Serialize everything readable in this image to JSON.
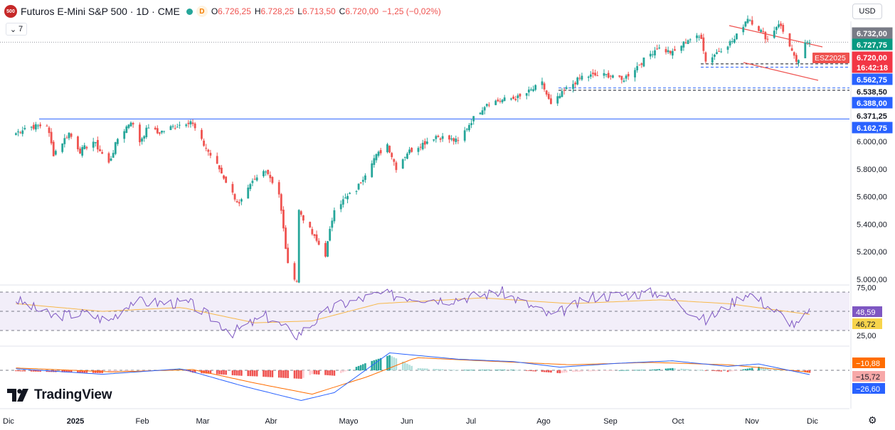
{
  "header": {
    "logo_text": "500",
    "title": "Futuros E-Mini S&P 500 · 1D · CME",
    "d_badge": "D",
    "open_label": "O",
    "open": "6.726,25",
    "high_label": "H",
    "high": "6.728,25",
    "low_label": "L",
    "low": "6.713,50",
    "close_label": "C",
    "close": "6.720,00",
    "change": "−1,25 (−0,02%)"
  },
  "indicators_toggle": "7",
  "currency": "USD",
  "brand": "TradingView",
  "colors": {
    "up": "#26a69a",
    "down": "#ef5350",
    "blue_line": "#2962ff",
    "rsi_line": "#7e57c2",
    "rsi_ma": "#f7b84b",
    "rsi_band": "#ede7f6",
    "macd_line": "#2962ff",
    "signal_line": "#ff6d00"
  },
  "price_axis": {
    "ticks": [
      "6.000,00",
      "5.800,00",
      "5.600,00",
      "5.400,00",
      "5.200,00",
      "5.000,00"
    ],
    "labels": [
      {
        "text": "6.732,00",
        "value": 6732,
        "bg": "#787b86",
        "fg": "#ffffff"
      },
      {
        "text": "6.727,75",
        "value": 6727.75,
        "bg": "#089981",
        "fg": "#ffffff"
      },
      {
        "text": "6.720,00",
        "value": 6720,
        "bg": "#f23645",
        "fg": "#ffffff"
      },
      {
        "text": "16:42:18",
        "value": 6700,
        "bg": "#f23645",
        "fg": "#ffffff"
      },
      {
        "text": "6.562,75",
        "value": 6562.75,
        "bg": "#2962ff",
        "fg": "#ffffff"
      },
      {
        "text": "6.538,50",
        "value": 6538.5,
        "bg": "#ffffff",
        "fg": "#131722"
      },
      {
        "text": "6.388,00",
        "value": 6388,
        "bg": "#2962ff",
        "fg": "#ffffff"
      },
      {
        "text": "6.371,25",
        "value": 6371.25,
        "bg": "#ffffff",
        "fg": "#131722"
      },
      {
        "text": "6.162,75",
        "value": 6162.75,
        "bg": "#2962ff",
        "fg": "#ffffff"
      }
    ],
    "symbol_tag": "ESZ2025"
  },
  "rsi_axis": {
    "ticks": [
      "75,00",
      "25,00"
    ],
    "labels": [
      {
        "text": "48,59",
        "value": 48.59,
        "bg": "#7e57c2",
        "fg": "#ffffff"
      },
      {
        "text": "46,72",
        "value": 46.72,
        "bg": "#f7d44b",
        "fg": "#131722"
      }
    ]
  },
  "macd_axis": {
    "labels": [
      {
        "text": "−10,88",
        "value": -10.88,
        "bg": "#ff6d00",
        "fg": "#ffffff"
      },
      {
        "text": "−15,72",
        "value": -15.72,
        "bg": "#f7a8a8",
        "fg": "#131722"
      },
      {
        "text": "−26,60",
        "value": -26.6,
        "bg": "#2962ff",
        "fg": "#ffffff"
      }
    ]
  },
  "x_axis": {
    "labels": [
      "Dic",
      "2025",
      "Feb",
      "Mar",
      "Abr",
      "Mayo",
      "Jun",
      "Jul",
      "Ago",
      "Sep",
      "Oct",
      "Nov",
      "Dic"
    ]
  },
  "chart_data": {
    "type": "candlestick",
    "symbol": "ESZ2025",
    "interval": "1D",
    "x_range": [
      "2024-11-28",
      "2025-11-26"
    ],
    "ylim": [
      4800,
      6800
    ],
    "horizontal_levels": [
      6562.75,
      6538.5,
      6388,
      6371.25,
      6162.75
    ],
    "price_path": [
      [
        "2024-12-02",
        6060
      ],
      [
        "2024-12-06",
        6100
      ],
      [
        "2024-12-16",
        6120
      ],
      [
        "2024-12-19",
        5910
      ],
      [
        "2024-12-26",
        6060
      ],
      [
        "2024-12-31",
        5930
      ],
      [
        "2025-01-06",
        6000
      ],
      [
        "2025-01-13",
        5840
      ],
      [
        "2025-01-17",
        6020
      ],
      [
        "2025-01-23",
        6150
      ],
      [
        "2025-01-27",
        6000
      ],
      [
        "2025-01-31",
        6110
      ],
      [
        "2025-02-04",
        6060
      ],
      [
        "2025-02-10",
        6100
      ],
      [
        "2025-02-19",
        6150
      ],
      [
        "2025-02-24",
        6000
      ],
      [
        "2025-03-04",
        5800
      ],
      [
        "2025-03-10",
        5620
      ],
      [
        "2025-03-13",
        5540
      ],
      [
        "2025-03-19",
        5700
      ],
      [
        "2025-03-25",
        5800
      ],
      [
        "2025-03-31",
        5620
      ],
      [
        "2025-04-04",
        5100
      ],
      [
        "2025-04-08",
        4990
      ],
      [
        "2025-04-09",
        5500
      ],
      [
        "2025-04-16",
        5300
      ],
      [
        "2025-04-21",
        5180
      ],
      [
        "2025-04-25",
        5520
      ],
      [
        "2025-05-05",
        5650
      ],
      [
        "2025-05-12",
        5860
      ],
      [
        "2025-05-19",
        5980
      ],
      [
        "2025-05-23",
        5810
      ],
      [
        "2025-05-28",
        5920
      ],
      [
        "2025-06-10",
        6040
      ],
      [
        "2025-06-20",
        6000
      ],
      [
        "2025-06-26",
        6150
      ],
      [
        "2025-07-03",
        6280
      ],
      [
        "2025-07-10",
        6300
      ],
      [
        "2025-07-18",
        6320
      ],
      [
        "2025-07-28",
        6420
      ],
      [
        "2025-08-01",
        6260
      ],
      [
        "2025-08-08",
        6380
      ],
      [
        "2025-08-15",
        6470
      ],
      [
        "2025-08-22",
        6480
      ],
      [
        "2025-08-29",
        6480
      ],
      [
        "2025-09-02",
        6440
      ],
      [
        "2025-09-10",
        6560
      ],
      [
        "2025-09-18",
        6680
      ],
      [
        "2025-09-25",
        6640
      ],
      [
        "2025-10-02",
        6740
      ],
      [
        "2025-10-08",
        6760
      ],
      [
        "2025-10-10",
        6580
      ],
      [
        "2025-10-16",
        6660
      ],
      [
        "2025-10-23",
        6740
      ],
      [
        "2025-10-29",
        6900
      ],
      [
        "2025-11-04",
        6800
      ],
      [
        "2025-11-07",
        6740
      ],
      [
        "2025-11-12",
        6860
      ],
      [
        "2025-11-17",
        6700
      ],
      [
        "2025-11-20",
        6560
      ],
      [
        "2025-11-24",
        6700
      ],
      [
        "2025-11-26",
        6720
      ]
    ],
    "rsi": {
      "ylim": [
        0,
        100
      ],
      "bands": [
        70,
        50,
        30
      ],
      "path": [
        [
          "2024-12-02",
          62
        ],
        [
          "2024-12-18",
          45
        ],
        [
          "2025-01-02",
          48
        ],
        [
          "2025-01-13",
          40
        ],
        [
          "2025-01-23",
          60
        ],
        [
          "2025-02-19",
          58
        ],
        [
          "2025-03-10",
          28
        ],
        [
          "2025-03-25",
          45
        ],
        [
          "2025-04-08",
          25
        ],
        [
          "2025-04-25",
          55
        ],
        [
          "2025-05-15",
          68
        ],
        [
          "2025-06-15",
          62
        ],
        [
          "2025-07-10",
          70
        ],
        [
          "2025-08-01",
          45
        ],
        [
          "2025-08-20",
          65
        ],
        [
          "2025-09-20",
          70
        ],
        [
          "2025-10-10",
          40
        ],
        [
          "2025-10-29",
          70
        ],
        [
          "2025-11-20",
          35
        ],
        [
          "2025-11-26",
          48.59
        ]
      ],
      "ma_path": [
        [
          "2024-12-02",
          58
        ],
        [
          "2025-01-10",
          50
        ],
        [
          "2025-02-15",
          54
        ],
        [
          "2025-03-20",
          38
        ],
        [
          "2025-04-15",
          40
        ],
        [
          "2025-05-15",
          58
        ],
        [
          "2025-07-01",
          64
        ],
        [
          "2025-08-10",
          58
        ],
        [
          "2025-09-20",
          62
        ],
        [
          "2025-10-20",
          58
        ],
        [
          "2025-11-26",
          46.72
        ]
      ]
    },
    "macd": {
      "ylim": [
        -210,
        130
      ],
      "macd_path": [
        [
          "2024-12-02",
          10
        ],
        [
          "2025-01-10",
          -25
        ],
        [
          "2025-02-15",
          10
        ],
        [
          "2025-03-15",
          -100
        ],
        [
          "2025-04-10",
          -190
        ],
        [
          "2025-04-25",
          -140
        ],
        [
          "2025-05-20",
          110
        ],
        [
          "2025-06-20",
          70
        ],
        [
          "2025-07-15",
          55
        ],
        [
          "2025-08-05",
          20
        ],
        [
          "2025-09-01",
          45
        ],
        [
          "2025-09-25",
          60
        ],
        [
          "2025-10-20",
          25
        ],
        [
          "2025-11-03",
          40
        ],
        [
          "2025-11-26",
          -26.6
        ]
      ],
      "signal_path": [
        [
          "2024-12-02",
          15
        ],
        [
          "2025-01-15",
          -10
        ],
        [
          "2025-02-20",
          5
        ],
        [
          "2025-03-20",
          -80
        ],
        [
          "2025-04-15",
          -150
        ],
        [
          "2025-05-10",
          -40
        ],
        [
          "2025-06-01",
          80
        ],
        [
          "2025-07-01",
          60
        ],
        [
          "2025-08-10",
          35
        ],
        [
          "2025-09-15",
          50
        ],
        [
          "2025-10-20",
          35
        ],
        [
          "2025-11-26",
          -10.88
        ]
      ],
      "histogram_last": -15.72
    }
  }
}
